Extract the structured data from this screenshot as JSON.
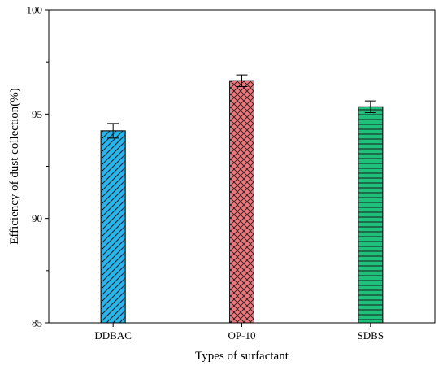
{
  "chart_data": {
    "type": "bar",
    "title": "",
    "xlabel": "Types of surfactant",
    "ylabel": "Efficiency of dust collection(%)",
    "ylim": [
      85,
      100
    ],
    "yticks": [
      85,
      90,
      95,
      100
    ],
    "grid": false,
    "categories": [
      "DDBAC",
      "OP-10",
      "SDBS"
    ],
    "values": [
      94.2,
      96.6,
      95.35
    ],
    "errors": [
      0.35,
      0.28,
      0.28
    ],
    "colors": [
      "#29b6ec",
      "#f0787c",
      "#1fc07c"
    ],
    "patterns": [
      "diagonal",
      "crosshatch",
      "horizontal"
    ]
  }
}
